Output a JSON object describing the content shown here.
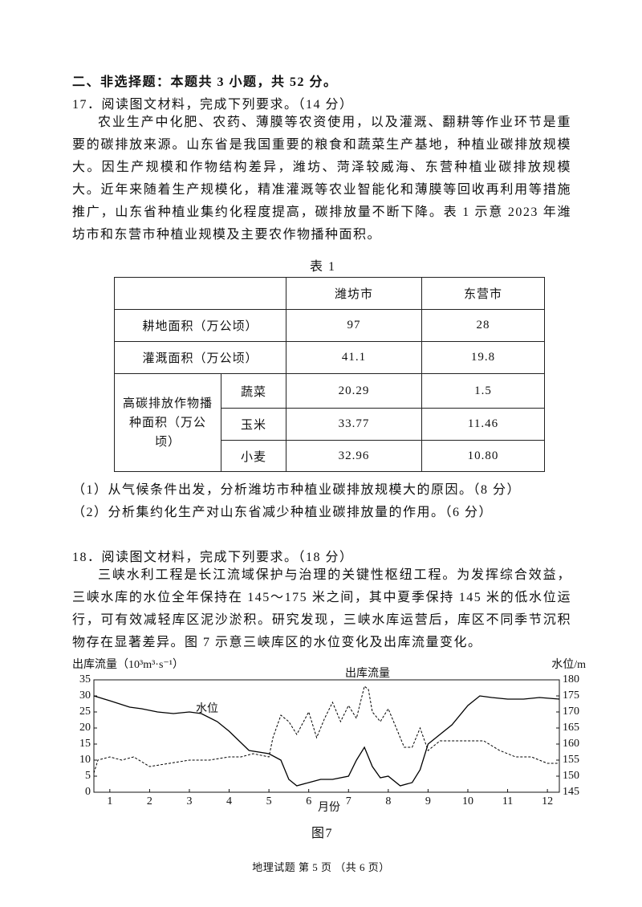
{
  "section_heading": "二、非选择题：本题共 3 小题，共 52 分。",
  "q17": {
    "heading": "17．阅读图文材料，完成下列要求。（14 分）",
    "paragraph": "农业生产中化肥、农药、薄膜等农资使用，以及灌溉、翻耕等作业环节是重要的碳排放来源。山东省是我国重要的粮食和蔬菜生产基地，种植业碳排放规模大。因生产规模和作物结构差异，潍坊、菏泽较威海、东营种植业碳排放规模大。近年来随着生产规模化，精准灌溉等农业智能化和薄膜等回收再利用等措施推广，山东省种植业集约化程度提高，碳排放量不断下降。表 1 示意 2023 年潍坊市和东营市种植业规模及主要农作物播种面积。",
    "table": {
      "caption": "表 1",
      "header": [
        "潍坊市",
        "东营市"
      ],
      "rows": [
        [
          "耕地面积（万公顷）",
          "97",
          "28"
        ],
        [
          "灌溉面积（万公顷）",
          "41.1",
          "19.8"
        ]
      ],
      "group": {
        "label": "高碳排放作物播种面积（万公顷）",
        "rows": [
          [
            "蔬菜",
            "20.29",
            "1.5"
          ],
          [
            "玉米",
            "33.77",
            "11.46"
          ],
          [
            "小麦",
            "32.96",
            "10.80"
          ]
        ]
      }
    },
    "questions": [
      "（1）从气候条件出发，分析潍坊市种植业碳排放规模大的原因。（8 分）",
      "（2）分析集约化生产对山东省减少种植业碳排放量的作用。（6 分）"
    ]
  },
  "q18": {
    "heading": "18．阅读图文材料，完成下列要求。（18 分）",
    "paragraph": "三峡水利工程是长江流域保护与治理的关键性枢纽工程。为发挥综合效益，三峡水库的水位全年保持在 145～175 米之间，其中夏季保持 145 米的低水位运行，可有效减轻库区泥沙淤积。研究发现，三峡水库运营后，库区不同季节沉积物存在显著差异。图 7 示意三峡库区的水位变化及出库流量变化。",
    "figure": {
      "caption": "图7",
      "chart_data": {
        "type": "line",
        "ylabel": "出库流量（10³m³·s⁻¹）",
        "y2label": "水位/m",
        "xlabel": "月份",
        "xlim": [
          0.6,
          12.3
        ],
        "xticks": [
          1,
          2,
          3,
          4,
          5,
          6,
          7,
          8,
          9,
          10,
          11,
          12
        ],
        "ylim": [
          0,
          35
        ],
        "yticks": [
          0,
          5,
          10,
          15,
          20,
          25,
          30,
          35
        ],
        "y2lim": [
          145,
          180
        ],
        "y2ticks": [
          145,
          150,
          155,
          160,
          165,
          170,
          175,
          180
        ],
        "series": [
          {
            "name": "出库流量",
            "color": "#000000",
            "style": "dashed",
            "x": [
              0.6,
              0.7,
              1,
              1.3,
              1.6,
              2,
              2.5,
              3,
              3.5,
              4,
              4.3,
              4.6,
              5,
              5.1,
              5.3,
              5.5,
              5.7,
              6,
              6.2,
              6.4,
              6.6,
              6.8,
              7,
              7.2,
              7.4,
              7.5,
              7.6,
              7.8,
              8,
              8.2,
              8.4,
              8.6,
              8.8,
              9,
              9.3,
              9.6,
              10,
              10.4,
              10.8,
              11.2,
              11.6,
              12,
              12.3
            ],
            "values": [
              6,
              10,
              11,
              10,
              11,
              8,
              9,
              10,
              10,
              11,
              11,
              12,
              11,
              17,
              24,
              22,
              18,
              25,
              17,
              23,
              28,
              22,
              27,
              23,
              33,
              32,
              25,
              22,
              26,
              20,
              14,
              14,
              20,
              13,
              16,
              16,
              16,
              16,
              13,
              11,
              11,
              9,
              9
            ]
          },
          {
            "name": "水位",
            "color": "#000000",
            "style": "solid",
            "axis": "y2",
            "x": [
              0.6,
              1,
              1.5,
              1.8,
              2.2,
              2.6,
              3,
              3.3,
              3.7,
              4,
              4.5,
              5,
              5.3,
              5.5,
              5.7,
              6,
              6.3,
              6.6,
              7,
              7.2,
              7.4,
              7.6,
              7.8,
              8,
              8.3,
              8.6,
              8.8,
              9,
              9.3,
              9.6,
              10,
              10.3,
              10.6,
              11,
              11.4,
              11.8,
              12.3
            ],
            "values": [
              175,
              173.5,
              171.5,
              171,
              170,
              169.5,
              170,
              169.5,
              167,
              164,
              158,
              157,
              155,
              149,
              147,
              148,
              149,
              149,
              150,
              155,
              159,
              153,
              149.5,
              150,
              147,
              148,
              152,
              160,
              163,
              166,
              172,
              175,
              174.5,
              174,
              174,
              174.5,
              174
            ]
          }
        ]
      }
    }
  },
  "footer": "地理试题 第 5 页 （共 6 页）"
}
